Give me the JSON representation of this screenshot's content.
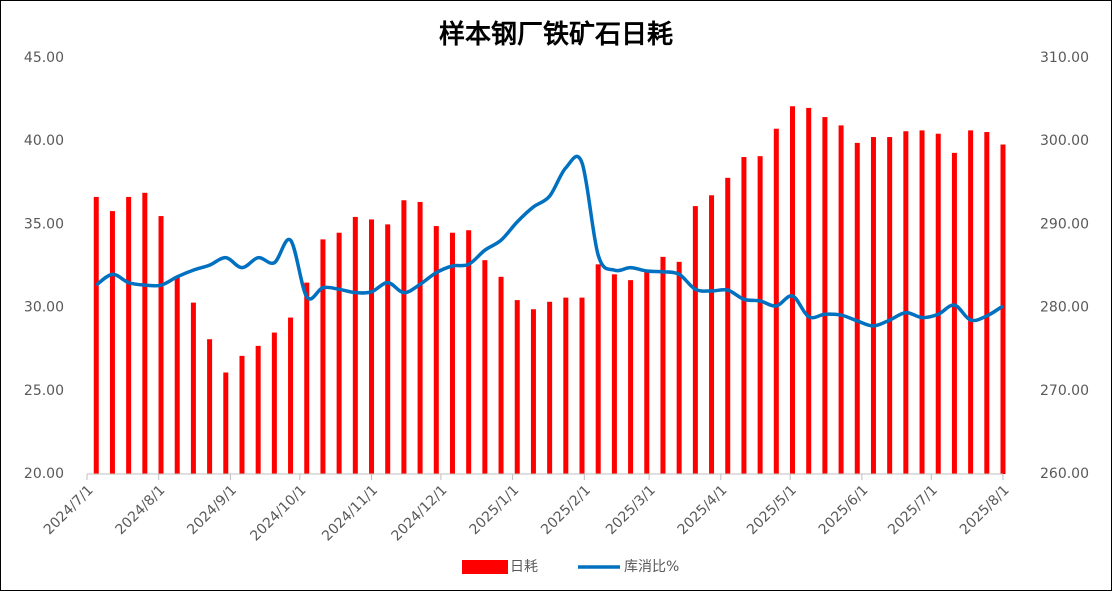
{
  "chart_data": {
    "type": "bar-line",
    "title": "样本钢厂铁矿石日耗",
    "x": [
      "2024/7/5",
      "2024/7/12",
      "2024/7/19",
      "2024/7/26",
      "2024/8/2",
      "2024/8/9",
      "2024/8/16",
      "2024/8/23",
      "2024/8/30",
      "2024/9/6",
      "2024/9/13",
      "2024/9/20",
      "2024/9/27",
      "2024/10/4",
      "2024/10/11",
      "2024/10/18",
      "2024/10/25",
      "2024/11/1",
      "2024/11/8",
      "2024/11/15",
      "2024/11/22",
      "2024/11/29",
      "2024/12/6",
      "2024/12/13",
      "2024/12/20",
      "2024/12/27",
      "2025/1/3",
      "2025/1/10",
      "2025/1/17",
      "2025/1/24",
      "2025/1/31",
      "2025/2/7",
      "2025/2/14",
      "2025/2/21",
      "2025/2/28",
      "2025/3/7",
      "2025/3/14",
      "2025/3/21",
      "2025/3/28",
      "2025/4/4",
      "2025/4/11",
      "2025/4/18",
      "2025/4/25",
      "2025/5/2",
      "2025/5/9",
      "2025/5/16",
      "2025/5/23",
      "2025/5/30",
      "2025/6/6",
      "2025/6/13",
      "2025/6/20",
      "2025/6/27",
      "2025/7/4",
      "2025/7/11",
      "2025/7/18",
      "2025/7/25",
      "2025/8/1"
    ],
    "xlim": [
      "2024/7/1",
      "2025/8/1"
    ],
    "xticks": [
      "2024/7/1",
      "2024/8/1",
      "2024/9/1",
      "2024/10/1",
      "2024/11/1",
      "2024/12/1",
      "2025/1/1",
      "2025/2/1",
      "2025/3/1",
      "2025/4/1",
      "2025/5/1",
      "2025/6/1",
      "2025/7/1",
      "2025/8/1"
    ],
    "series": [
      {
        "name": "日耗",
        "type": "bar",
        "color": "#ff0000",
        "values": [
          36.65,
          35.8,
          36.65,
          36.9,
          35.5,
          31.9,
          30.3,
          28.1,
          26.1,
          27.1,
          27.7,
          28.5,
          29.4,
          31.5,
          34.1,
          34.5,
          35.45,
          35.3,
          35.0,
          36.45,
          36.35,
          34.9,
          34.5,
          34.65,
          32.85,
          31.85,
          30.45,
          29.9,
          30.35,
          30.6,
          30.6,
          32.6,
          32.0,
          31.65,
          32.25,
          33.05,
          32.75,
          36.1,
          36.75,
          37.8,
          39.05,
          39.1,
          40.75,
          42.1,
          42.0,
          41.45,
          40.95,
          39.9,
          40.25,
          40.25,
          40.6,
          40.65,
          40.45,
          39.3,
          40.65,
          40.55,
          39.8
        ]
      },
      {
        "name": "库消比%",
        "type": "line",
        "axis": "y2",
        "color": "#0070c0",
        "values": [
          282.7,
          284.0,
          283.0,
          282.7,
          282.7,
          283.7,
          284.5,
          285.1,
          286.0,
          284.8,
          286.0,
          285.4,
          288.1,
          281.3,
          282.4,
          282.2,
          281.8,
          281.9,
          283.0,
          281.8,
          282.8,
          284.2,
          285.0,
          285.2,
          286.9,
          288.1,
          290.3,
          292.1,
          293.4,
          296.8,
          297.4,
          286.3,
          284.5,
          284.8,
          284.4,
          284.3,
          284.0,
          282.2,
          282.0,
          282.1,
          281.0,
          280.8,
          280.2,
          281.4,
          278.9,
          279.2,
          279.1,
          278.4,
          277.8,
          278.5,
          279.4,
          278.8,
          279.2,
          280.3,
          278.5,
          279.0,
          280.2
        ]
      }
    ],
    "ylim": [
      20,
      45
    ],
    "yticks": [
      {
        "value": 20,
        "label": "20.00"
      },
      {
        "value": 25,
        "label": "25.00"
      },
      {
        "value": 30,
        "label": "30.00"
      },
      {
        "value": 35,
        "label": "35.00"
      },
      {
        "value": 40,
        "label": "40.00"
      },
      {
        "value": 45,
        "label": "45.00"
      }
    ],
    "y2lim": [
      260,
      310
    ],
    "y2ticks": [
      {
        "value": 260,
        "label": "260.00"
      },
      {
        "value": 270,
        "label": "270.00"
      },
      {
        "value": 280,
        "label": "280.00"
      },
      {
        "value": 290,
        "label": "290.00"
      },
      {
        "value": 300,
        "label": "300.00"
      },
      {
        "value": 310,
        "label": "310.00"
      }
    ],
    "grid": false
  }
}
